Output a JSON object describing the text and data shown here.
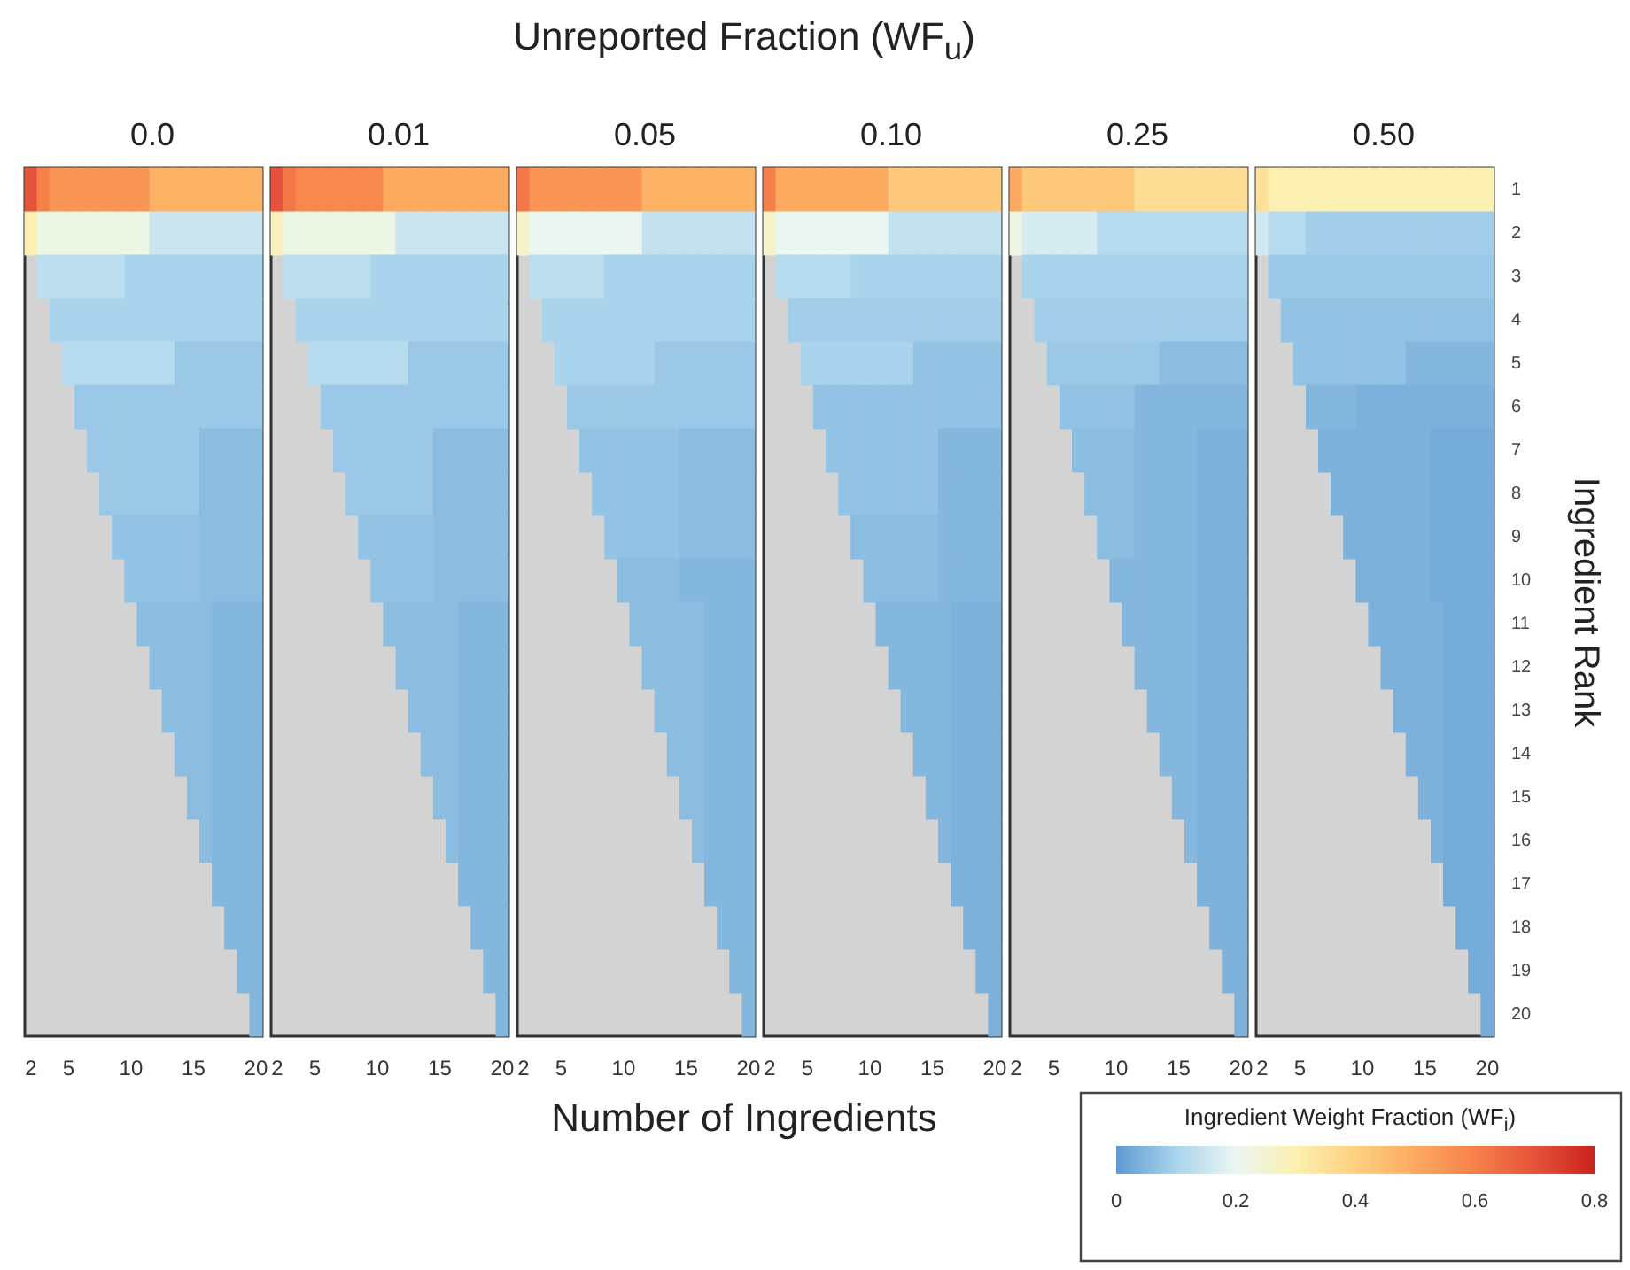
{
  "chart_data": {
    "type": "heatmap",
    "title": "Unreported Fraction (WF$_{u}$)",
    "annotations": [
      "0.0",
      "0.01",
      "0.05",
      "0.10",
      "0.25",
      "0.50"
    ],
    "xlabel": "Number of Ingredients",
    "ylabel": "Ingredient Rank",
    "clabel": "Ingredient Weight Fraction (WF$_{i}$)",
    "clim": [
      0,
      0.8
    ],
    "cticks": [
      0,
      0.2,
      0.4,
      0.6,
      0.8
    ],
    "categories": [
      "2",
      null,
      null,
      "5",
      null,
      null,
      null,
      null,
      "10",
      null,
      null,
      null,
      null,
      "15",
      null,
      null,
      null,
      null,
      "20",
      "2",
      null,
      null,
      "5",
      null,
      null,
      null,
      null,
      "10",
      null,
      null,
      null,
      null,
      "15",
      null,
      null,
      null,
      null,
      "20",
      "2",
      null,
      null,
      "5",
      null,
      null,
      null,
      null,
      "10",
      null,
      null,
      null,
      null,
      "15",
      null,
      null,
      null,
      null,
      "20",
      "2",
      null,
      null,
      "5",
      null,
      null,
      null,
      null,
      "10",
      null,
      null,
      null,
      null,
      "15",
      null,
      null,
      null,
      null,
      "20",
      "2",
      null,
      null,
      "5",
      null,
      null,
      null,
      null,
      "10",
      null,
      null,
      null,
      null,
      "15",
      null,
      null,
      null,
      null,
      "20",
      "2",
      null,
      null,
      "5",
      null,
      null,
      null,
      null,
      "10",
      null,
      null,
      null,
      null,
      "15",
      null,
      null,
      null,
      null,
      "20"
    ],
    "y_categories": [
      "1",
      "2",
      "3",
      "4",
      "5",
      "6",
      "7",
      "8",
      "9",
      "10",
      "11",
      "12",
      "13",
      "14",
      "15",
      "16",
      "17",
      "18",
      "19",
      "20"
    ],
    "cells": [
      [
        0.7,
        0.6,
        0.55,
        0.55,
        0.55,
        0.55,
        0.55,
        0.55,
        0.55,
        0.55,
        0.48,
        0.48,
        0.48,
        0.48,
        0.48,
        0.48,
        0.48,
        0.48,
        0.48,
        0.7,
        0.62,
        0.58,
        0.58,
        0.58,
        0.58,
        0.58,
        0.58,
        0.58,
        0.5,
        0.5,
        0.5,
        0.5,
        0.5,
        0.5,
        0.5,
        0.5,
        0.5,
        0.5,
        0.62,
        0.55,
        0.55,
        0.55,
        0.55,
        0.55,
        0.55,
        0.55,
        0.55,
        0.55,
        0.48,
        0.48,
        0.48,
        0.48,
        0.48,
        0.48,
        0.48,
        0.48,
        0.48,
        0.6,
        0.5,
        0.5,
        0.5,
        0.5,
        0.5,
        0.5,
        0.5,
        0.5,
        0.5,
        0.42,
        0.42,
        0.42,
        0.42,
        0.42,
        0.42,
        0.42,
        0.42,
        0.42,
        0.5,
        0.42,
        0.42,
        0.42,
        0.42,
        0.42,
        0.42,
        0.42,
        0.42,
        0.42,
        0.36,
        0.36,
        0.36,
        0.36,
        0.36,
        0.36,
        0.36,
        0.36,
        0.36,
        0.35,
        0.3,
        0.3,
        0.3,
        0.3,
        0.3,
        0.3,
        0.3,
        0.3,
        0.3,
        0.3,
        0.3,
        0.3,
        0.3,
        0.3,
        0.3,
        0.3,
        0.3,
        0.3
      ],
      [
        0.3,
        0.22,
        0.22,
        0.22,
        0.22,
        0.22,
        0.22,
        0.22,
        0.22,
        0.22,
        0.15,
        0.15,
        0.15,
        0.15,
        0.15,
        0.15,
        0.15,
        0.15,
        0.15,
        0.28,
        0.22,
        0.22,
        0.22,
        0.22,
        0.22,
        0.22,
        0.22,
        0.22,
        0.22,
        0.15,
        0.15,
        0.15,
        0.15,
        0.15,
        0.15,
        0.15,
        0.15,
        0.15,
        0.26,
        0.2,
        0.2,
        0.2,
        0.2,
        0.2,
        0.2,
        0.2,
        0.2,
        0.2,
        0.14,
        0.14,
        0.14,
        0.14,
        0.14,
        0.14,
        0.14,
        0.14,
        0.14,
        0.26,
        0.2,
        0.2,
        0.2,
        0.2,
        0.2,
        0.2,
        0.2,
        0.2,
        0.2,
        0.14,
        0.14,
        0.14,
        0.14,
        0.14,
        0.14,
        0.14,
        0.14,
        0.14,
        0.22,
        0.17,
        0.17,
        0.17,
        0.17,
        0.17,
        0.17,
        0.12,
        0.12,
        0.12,
        0.12,
        0.12,
        0.12,
        0.12,
        0.12,
        0.12,
        0.12,
        0.12,
        0.12,
        0.16,
        0.12,
        0.12,
        0.12,
        0.09,
        0.09,
        0.09,
        0.09,
        0.09,
        0.09,
        0.09,
        0.09,
        0.09,
        0.09,
        0.09,
        0.09,
        0.09,
        0.09,
        0.09
      ],
      [
        null,
        0.13,
        0.13,
        0.13,
        0.13,
        0.13,
        0.13,
        0.13,
        0.1,
        0.1,
        0.1,
        0.1,
        0.1,
        0.1,
        0.1,
        0.1,
        0.1,
        0.1,
        0.1,
        null,
        0.13,
        0.13,
        0.13,
        0.13,
        0.13,
        0.13,
        0.13,
        0.1,
        0.1,
        0.1,
        0.1,
        0.1,
        0.1,
        0.1,
        0.1,
        0.1,
        0.1,
        0.1,
        null,
        0.13,
        0.13,
        0.13,
        0.13,
        0.13,
        0.13,
        0.1,
        0.1,
        0.1,
        0.1,
        0.1,
        0.1,
        0.1,
        0.1,
        0.1,
        0.1,
        0.1,
        0.1,
        null,
        0.12,
        0.12,
        0.12,
        0.12,
        0.12,
        0.12,
        0.1,
        0.1,
        0.1,
        0.1,
        0.1,
        0.1,
        0.1,
        0.1,
        0.1,
        0.1,
        0.1,
        0.1,
        null,
        0.1,
        0.1,
        0.1,
        0.1,
        0.1,
        0.1,
        0.1,
        0.1,
        0.1,
        0.1,
        0.1,
        0.1,
        0.1,
        0.1,
        0.1,
        0.1,
        0.1,
        0.1,
        null,
        0.08,
        0.08,
        0.08,
        0.08,
        0.08,
        0.08,
        0.08,
        0.08,
        0.08,
        0.08,
        0.08,
        0.08,
        0.08,
        0.08,
        0.08,
        0.08,
        0.08,
        0.08
      ],
      [
        null,
        null,
        0.1,
        0.1,
        0.1,
        0.1,
        0.1,
        0.1,
        0.1,
        0.1,
        0.1,
        0.1,
        0.1,
        0.1,
        0.1,
        0.1,
        0.1,
        0.1,
        0.1,
        null,
        null,
        0.1,
        0.1,
        0.1,
        0.1,
        0.1,
        0.1,
        0.1,
        0.1,
        0.1,
        0.1,
        0.1,
        0.1,
        0.1,
        0.1,
        0.1,
        0.1,
        0.1,
        null,
        null,
        0.1,
        0.1,
        0.1,
        0.1,
        0.1,
        0.1,
        0.1,
        0.1,
        0.1,
        0.1,
        0.1,
        0.1,
        0.1,
        0.1,
        0.1,
        0.1,
        0.1,
        null,
        null,
        0.09,
        0.09,
        0.09,
        0.09,
        0.09,
        0.09,
        0.09,
        0.09,
        0.09,
        0.09,
        0.09,
        0.09,
        0.09,
        0.09,
        0.09,
        0.09,
        0.09,
        null,
        null,
        0.09,
        0.09,
        0.09,
        0.09,
        0.09,
        0.09,
        0.09,
        0.09,
        0.09,
        0.09,
        0.09,
        0.09,
        0.09,
        0.09,
        0.09,
        0.09,
        0.09,
        null,
        null,
        0.07,
        0.07,
        0.07,
        0.07,
        0.07,
        0.07,
        0.07,
        0.07,
        0.07,
        0.07,
        0.07,
        0.07,
        0.07,
        0.07,
        0.07,
        0.07,
        0.07
      ],
      [
        null,
        null,
        null,
        0.12,
        0.12,
        0.12,
        0.12,
        0.12,
        0.12,
        0.12,
        0.12,
        0.12,
        0.08,
        0.08,
        0.08,
        0.08,
        0.08,
        0.08,
        0.08,
        null,
        null,
        null,
        0.12,
        0.12,
        0.12,
        0.12,
        0.12,
        0.12,
        0.12,
        0.12,
        0.08,
        0.08,
        0.08,
        0.08,
        0.08,
        0.08,
        0.08,
        0.08,
        null,
        null,
        null,
        0.1,
        0.1,
        0.1,
        0.1,
        0.1,
        0.1,
        0.1,
        0.1,
        0.08,
        0.08,
        0.08,
        0.08,
        0.08,
        0.08,
        0.08,
        0.08,
        null,
        null,
        null,
        0.1,
        0.1,
        0.1,
        0.1,
        0.1,
        0.1,
        0.1,
        0.1,
        0.1,
        0.07,
        0.07,
        0.07,
        0.07,
        0.07,
        0.07,
        0.07,
        null,
        null,
        null,
        0.08,
        0.08,
        0.08,
        0.08,
        0.08,
        0.08,
        0.08,
        0.08,
        0.08,
        0.06,
        0.06,
        0.06,
        0.06,
        0.06,
        0.06,
        0.06,
        null,
        null,
        null,
        0.07,
        0.07,
        0.07,
        0.07,
        0.07,
        0.07,
        0.07,
        0.07,
        0.07,
        0.05,
        0.05,
        0.05,
        0.05,
        0.05,
        0.05,
        0.05
      ],
      [
        null,
        null,
        null,
        null,
        0.08,
        0.08,
        0.08,
        0.08,
        0.08,
        0.08,
        0.08,
        0.08,
        0.08,
        0.08,
        0.08,
        0.08,
        0.08,
        0.08,
        0.08,
        null,
        null,
        null,
        null,
        0.08,
        0.08,
        0.08,
        0.08,
        0.08,
        0.08,
        0.08,
        0.08,
        0.08,
        0.08,
        0.08,
        0.08,
        0.08,
        0.08,
        0.08,
        null,
        null,
        null,
        null,
        0.08,
        0.08,
        0.08,
        0.08,
        0.08,
        0.08,
        0.08,
        0.08,
        0.08,
        0.08,
        0.08,
        0.08,
        0.08,
        0.08,
        0.08,
        null,
        null,
        null,
        null,
        0.07,
        0.07,
        0.07,
        0.07,
        0.07,
        0.07,
        0.07,
        0.07,
        0.07,
        0.07,
        0.07,
        0.07,
        0.07,
        0.07,
        0.07,
        null,
        null,
        null,
        null,
        0.07,
        0.07,
        0.07,
        0.07,
        0.07,
        0.07,
        0.05,
        0.05,
        0.05,
        0.05,
        0.05,
        0.05,
        0.05,
        0.05,
        0.05,
        null,
        null,
        null,
        null,
        0.05,
        0.05,
        0.05,
        0.05,
        0.04,
        0.04,
        0.04,
        0.04,
        0.04,
        0.04,
        0.04,
        0.04,
        0.04,
        0.04,
        0.04
      ],
      [
        null,
        null,
        null,
        null,
        null,
        0.08,
        0.08,
        0.08,
        0.08,
        0.08,
        0.08,
        0.08,
        0.08,
        0.08,
        0.06,
        0.06,
        0.06,
        0.06,
        0.06,
        null,
        null,
        null,
        null,
        null,
        0.08,
        0.08,
        0.08,
        0.08,
        0.08,
        0.08,
        0.08,
        0.08,
        0.06,
        0.06,
        0.06,
        0.06,
        0.06,
        0.06,
        null,
        null,
        null,
        null,
        null,
        0.07,
        0.07,
        0.07,
        0.07,
        0.07,
        0.07,
        0.07,
        0.07,
        0.06,
        0.06,
        0.06,
        0.06,
        0.06,
        0.06,
        null,
        null,
        null,
        null,
        null,
        0.07,
        0.07,
        0.07,
        0.07,
        0.07,
        0.07,
        0.07,
        0.07,
        0.07,
        0.05,
        0.05,
        0.05,
        0.05,
        0.05,
        null,
        null,
        null,
        null,
        null,
        0.06,
        0.06,
        0.06,
        0.06,
        0.06,
        0.05,
        0.05,
        0.05,
        0.05,
        0.05,
        0.04,
        0.04,
        0.04,
        0.04,
        null,
        null,
        null,
        null,
        null,
        0.04,
        0.04,
        0.04,
        0.04,
        0.04,
        0.04,
        0.04,
        0.04,
        0.04,
        0.03,
        0.03,
        0.03,
        0.03,
        0.03
      ],
      [
        null,
        null,
        null,
        null,
        null,
        null,
        0.08,
        0.08,
        0.08,
        0.08,
        0.08,
        0.08,
        0.08,
        0.08,
        0.06,
        0.06,
        0.06,
        0.06,
        0.06,
        null,
        null,
        null,
        null,
        null,
        null,
        0.08,
        0.08,
        0.08,
        0.08,
        0.08,
        0.08,
        0.08,
        0.06,
        0.06,
        0.06,
        0.06,
        0.06,
        0.06,
        null,
        null,
        null,
        null,
        null,
        null,
        0.07,
        0.07,
        0.07,
        0.07,
        0.07,
        0.07,
        0.07,
        0.06,
        0.06,
        0.06,
        0.06,
        0.06,
        0.06,
        null,
        null,
        null,
        null,
        null,
        null,
        0.07,
        0.07,
        0.07,
        0.07,
        0.07,
        0.07,
        0.07,
        0.07,
        0.05,
        0.05,
        0.05,
        0.05,
        0.05,
        null,
        null,
        null,
        null,
        null,
        null,
        0.06,
        0.06,
        0.06,
        0.06,
        0.05,
        0.05,
        0.05,
        0.05,
        0.05,
        0.04,
        0.04,
        0.04,
        0.04,
        null,
        null,
        null,
        null,
        null,
        null,
        0.04,
        0.04,
        0.04,
        0.04,
        0.04,
        0.04,
        0.04,
        0.04,
        0.03,
        0.03,
        0.03,
        0.03,
        0.03
      ],
      [
        null,
        null,
        null,
        null,
        null,
        null,
        null,
        0.07,
        0.07,
        0.07,
        0.07,
        0.07,
        0.07,
        0.07,
        0.06,
        0.06,
        0.06,
        0.06,
        0.06,
        null,
        null,
        null,
        null,
        null,
        null,
        null,
        0.07,
        0.07,
        0.07,
        0.07,
        0.07,
        0.07,
        0.06,
        0.06,
        0.06,
        0.06,
        0.06,
        0.06,
        null,
        null,
        null,
        null,
        null,
        null,
        null,
        0.07,
        0.07,
        0.07,
        0.07,
        0.07,
        0.07,
        0.06,
        0.06,
        0.06,
        0.06,
        0.06,
        0.06,
        null,
        null,
        null,
        null,
        null,
        null,
        null,
        0.06,
        0.06,
        0.06,
        0.06,
        0.06,
        0.06,
        0.06,
        0.05,
        0.05,
        0.05,
        0.05,
        0.05,
        null,
        null,
        null,
        null,
        null,
        null,
        null,
        0.06,
        0.06,
        0.06,
        0.05,
        0.05,
        0.05,
        0.05,
        0.05,
        0.04,
        0.04,
        0.04,
        0.04,
        null,
        null,
        null,
        null,
        null,
        null,
        null,
        0.04,
        0.04,
        0.04,
        0.04,
        0.04,
        0.04,
        0.04,
        0.03,
        0.03,
        0.03,
        0.03,
        0.03
      ],
      [
        null,
        null,
        null,
        null,
        null,
        null,
        null,
        null,
        0.07,
        0.07,
        0.07,
        0.07,
        0.07,
        0.07,
        0.06,
        0.06,
        0.06,
        0.06,
        0.06,
        null,
        null,
        null,
        null,
        null,
        null,
        null,
        null,
        0.07,
        0.07,
        0.07,
        0.07,
        0.07,
        0.06,
        0.06,
        0.06,
        0.06,
        0.06,
        0.06,
        null,
        null,
        null,
        null,
        null,
        null,
        null,
        null,
        0.06,
        0.06,
        0.06,
        0.06,
        0.06,
        0.05,
        0.05,
        0.05,
        0.05,
        0.05,
        0.05,
        null,
        null,
        null,
        null,
        null,
        null,
        null,
        null,
        0.06,
        0.06,
        0.06,
        0.06,
        0.06,
        0.06,
        0.05,
        0.05,
        0.05,
        0.05,
        0.05,
        null,
        null,
        null,
        null,
        null,
        null,
        null,
        null,
        0.05,
        0.05,
        0.05,
        0.05,
        0.05,
        0.05,
        0.05,
        0.04,
        0.04,
        0.04,
        0.04,
        null,
        null,
        null,
        null,
        null,
        null,
        null,
        null,
        0.04,
        0.04,
        0.04,
        0.04,
        0.04,
        0.04,
        0.03,
        0.03,
        0.03,
        0.03,
        0.03
      ],
      [
        null,
        null,
        null,
        null,
        null,
        null,
        null,
        null,
        null,
        0.06,
        0.06,
        0.06,
        0.06,
        0.06,
        0.06,
        0.05,
        0.05,
        0.05,
        0.05,
        null,
        null,
        null,
        null,
        null,
        null,
        null,
        null,
        null,
        0.06,
        0.06,
        0.06,
        0.06,
        0.06,
        0.06,
        0.05,
        0.05,
        0.05,
        0.05,
        null,
        null,
        null,
        null,
        null,
        null,
        null,
        null,
        null,
        0.06,
        0.06,
        0.06,
        0.06,
        0.06,
        0.06,
        0.05,
        0.05,
        0.05,
        0.05,
        null,
        null,
        null,
        null,
        null,
        null,
        null,
        null,
        null,
        0.05,
        0.05,
        0.05,
        0.05,
        0.05,
        0.05,
        0.04,
        0.04,
        0.04,
        0.04,
        null,
        null,
        null,
        null,
        null,
        null,
        null,
        null,
        null,
        0.05,
        0.05,
        0.05,
        0.05,
        0.05,
        0.05,
        0.04,
        0.04,
        0.04,
        0.04,
        null,
        null,
        null,
        null,
        null,
        null,
        null,
        null,
        null,
        0.04,
        0.04,
        0.04,
        0.04,
        0.04,
        0.04,
        0.03,
        0.03,
        0.03,
        0.03
      ],
      [
        null,
        null,
        null,
        null,
        null,
        null,
        null,
        null,
        null,
        null,
        0.06,
        0.06,
        0.06,
        0.06,
        0.06,
        0.05,
        0.05,
        0.05,
        0.05,
        null,
        null,
        null,
        null,
        null,
        null,
        null,
        null,
        null,
        null,
        0.06,
        0.06,
        0.06,
        0.06,
        0.06,
        0.05,
        0.05,
        0.05,
        0.05,
        null,
        null,
        null,
        null,
        null,
        null,
        null,
        null,
        null,
        null,
        0.06,
        0.06,
        0.06,
        0.06,
        0.06,
        0.05,
        0.05,
        0.05,
        0.05,
        null,
        null,
        null,
        null,
        null,
        null,
        null,
        null,
        null,
        null,
        0.05,
        0.05,
        0.05,
        0.05,
        0.05,
        0.04,
        0.04,
        0.04,
        0.04,
        null,
        null,
        null,
        null,
        null,
        null,
        null,
        null,
        null,
        null,
        0.05,
        0.05,
        0.05,
        0.05,
        0.05,
        0.04,
        0.04,
        0.04,
        0.04,
        null,
        null,
        null,
        null,
        null,
        null,
        null,
        null,
        null,
        null,
        0.04,
        0.04,
        0.04,
        0.04,
        0.04,
        0.03,
        0.03,
        0.03,
        0.03
      ],
      [
        null,
        null,
        null,
        null,
        null,
        null,
        null,
        null,
        null,
        null,
        null,
        0.06,
        0.06,
        0.06,
        0.06,
        0.05,
        0.05,
        0.05,
        0.05,
        null,
        null,
        null,
        null,
        null,
        null,
        null,
        null,
        null,
        null,
        null,
        0.06,
        0.06,
        0.06,
        0.06,
        0.05,
        0.05,
        0.05,
        0.05,
        null,
        null,
        null,
        null,
        null,
        null,
        null,
        null,
        null,
        null,
        null,
        0.06,
        0.06,
        0.06,
        0.06,
        0.05,
        0.05,
        0.05,
        0.05,
        null,
        null,
        null,
        null,
        null,
        null,
        null,
        null,
        null,
        null,
        null,
        0.05,
        0.05,
        0.05,
        0.05,
        0.04,
        0.04,
        0.04,
        0.04,
        null,
        null,
        null,
        null,
        null,
        null,
        null,
        null,
        null,
        null,
        null,
        0.05,
        0.05,
        0.05,
        0.05,
        0.04,
        0.04,
        0.04,
        0.04,
        null,
        null,
        null,
        null,
        null,
        null,
        null,
        null,
        null,
        null,
        null,
        0.04,
        0.04,
        0.04,
        0.04,
        0.03,
        0.03,
        0.03,
        0.03
      ],
      [
        null,
        null,
        null,
        null,
        null,
        null,
        null,
        null,
        null,
        null,
        null,
        null,
        0.06,
        0.06,
        0.06,
        0.05,
        0.05,
        0.05,
        0.05,
        null,
        null,
        null,
        null,
        null,
        null,
        null,
        null,
        null,
        null,
        null,
        null,
        0.06,
        0.06,
        0.06,
        0.05,
        0.05,
        0.05,
        0.05,
        null,
        null,
        null,
        null,
        null,
        null,
        null,
        null,
        null,
        null,
        null,
        null,
        0.06,
        0.06,
        0.06,
        0.05,
        0.05,
        0.05,
        0.05,
        null,
        null,
        null,
        null,
        null,
        null,
        null,
        null,
        null,
        null,
        null,
        null,
        0.05,
        0.05,
        0.05,
        0.04,
        0.04,
        0.04,
        0.04,
        null,
        null,
        null,
        null,
        null,
        null,
        null,
        null,
        null,
        null,
        null,
        null,
        0.05,
        0.05,
        0.05,
        0.04,
        0.04,
        0.04,
        0.04,
        null,
        null,
        null,
        null,
        null,
        null,
        null,
        null,
        null,
        null,
        null,
        null,
        0.04,
        0.04,
        0.04,
        0.03,
        0.03,
        0.03,
        0.03
      ],
      [
        null,
        null,
        null,
        null,
        null,
        null,
        null,
        null,
        null,
        null,
        null,
        null,
        null,
        0.06,
        0.06,
        0.05,
        0.05,
        0.05,
        0.05,
        null,
        null,
        null,
        null,
        null,
        null,
        null,
        null,
        null,
        null,
        null,
        null,
        null,
        0.06,
        0.06,
        0.05,
        0.05,
        0.05,
        0.05,
        null,
        null,
        null,
        null,
        null,
        null,
        null,
        null,
        null,
        null,
        null,
        null,
        null,
        0.06,
        0.06,
        0.05,
        0.05,
        0.05,
        0.05,
        null,
        null,
        null,
        null,
        null,
        null,
        null,
        null,
        null,
        null,
        null,
        null,
        null,
        0.05,
        0.05,
        0.04,
        0.04,
        0.04,
        0.04,
        null,
        null,
        null,
        null,
        null,
        null,
        null,
        null,
        null,
        null,
        null,
        null,
        null,
        0.05,
        0.05,
        0.04,
        0.04,
        0.04,
        0.04,
        null,
        null,
        null,
        null,
        null,
        null,
        null,
        null,
        null,
        null,
        null,
        null,
        null,
        0.04,
        0.04,
        0.03,
        0.03,
        0.03,
        0.03
      ],
      [
        null,
        null,
        null,
        null,
        null,
        null,
        null,
        null,
        null,
        null,
        null,
        null,
        null,
        null,
        0.06,
        0.05,
        0.05,
        0.05,
        0.05,
        null,
        null,
        null,
        null,
        null,
        null,
        null,
        null,
        null,
        null,
        null,
        null,
        null,
        null,
        0.06,
        0.05,
        0.05,
        0.05,
        0.05,
        null,
        null,
        null,
        null,
        null,
        null,
        null,
        null,
        null,
        null,
        null,
        null,
        null,
        null,
        0.06,
        0.05,
        0.05,
        0.05,
        0.05,
        null,
        null,
        null,
        null,
        null,
        null,
        null,
        null,
        null,
        null,
        null,
        null,
        null,
        null,
        0.05,
        0.04,
        0.04,
        0.04,
        0.04,
        null,
        null,
        null,
        null,
        null,
        null,
        null,
        null,
        null,
        null,
        null,
        null,
        null,
        null,
        0.05,
        0.04,
        0.04,
        0.04,
        0.04,
        null,
        null,
        null,
        null,
        null,
        null,
        null,
        null,
        null,
        null,
        null,
        null,
        null,
        null,
        0.04,
        0.03,
        0.03,
        0.03,
        0.03
      ],
      [
        null,
        null,
        null,
        null,
        null,
        null,
        null,
        null,
        null,
        null,
        null,
        null,
        null,
        null,
        null,
        0.05,
        0.05,
        0.05,
        0.05,
        null,
        null,
        null,
        null,
        null,
        null,
        null,
        null,
        null,
        null,
        null,
        null,
        null,
        null,
        null,
        0.05,
        0.05,
        0.05,
        0.05,
        null,
        null,
        null,
        null,
        null,
        null,
        null,
        null,
        null,
        null,
        null,
        null,
        null,
        null,
        null,
        0.05,
        0.05,
        0.05,
        0.05,
        null,
        null,
        null,
        null,
        null,
        null,
        null,
        null,
        null,
        null,
        null,
        null,
        null,
        null,
        null,
        0.04,
        0.04,
        0.04,
        0.04,
        null,
        null,
        null,
        null,
        null,
        null,
        null,
        null,
        null,
        null,
        null,
        null,
        null,
        null,
        null,
        0.04,
        0.04,
        0.04,
        0.04,
        null,
        null,
        null,
        null,
        null,
        null,
        null,
        null,
        null,
        null,
        null,
        null,
        null,
        null,
        null,
        0.03,
        0.03,
        0.03,
        0.03
      ],
      [
        null,
        null,
        null,
        null,
        null,
        null,
        null,
        null,
        null,
        null,
        null,
        null,
        null,
        null,
        null,
        null,
        0.05,
        0.05,
        0.05,
        null,
        null,
        null,
        null,
        null,
        null,
        null,
        null,
        null,
        null,
        null,
        null,
        null,
        null,
        null,
        null,
        0.05,
        0.05,
        0.05,
        null,
        null,
        null,
        null,
        null,
        null,
        null,
        null,
        null,
        null,
        null,
        null,
        null,
        null,
        null,
        null,
        0.05,
        0.05,
        0.05,
        null,
        null,
        null,
        null,
        null,
        null,
        null,
        null,
        null,
        null,
        null,
        null,
        null,
        null,
        null,
        null,
        0.04,
        0.04,
        0.04,
        null,
        null,
        null,
        null,
        null,
        null,
        null,
        null,
        null,
        null,
        null,
        null,
        null,
        null,
        null,
        null,
        0.04,
        0.04,
        0.04,
        null,
        null,
        null,
        null,
        null,
        null,
        null,
        null,
        null,
        null,
        null,
        null,
        null,
        null,
        null,
        null,
        0.03,
        0.03,
        0.03
      ],
      [
        null,
        null,
        null,
        null,
        null,
        null,
        null,
        null,
        null,
        null,
        null,
        null,
        null,
        null,
        null,
        null,
        null,
        0.05,
        0.05,
        null,
        null,
        null,
        null,
        null,
        null,
        null,
        null,
        null,
        null,
        null,
        null,
        null,
        null,
        null,
        null,
        null,
        0.05,
        0.05,
        null,
        null,
        null,
        null,
        null,
        null,
        null,
        null,
        null,
        null,
        null,
        null,
        null,
        null,
        null,
        null,
        null,
        0.05,
        0.05,
        null,
        null,
        null,
        null,
        null,
        null,
        null,
        null,
        null,
        null,
        null,
        null,
        null,
        null,
        null,
        null,
        null,
        0.04,
        0.04,
        null,
        null,
        null,
        null,
        null,
        null,
        null,
        null,
        null,
        null,
        null,
        null,
        null,
        null,
        null,
        null,
        null,
        0.04,
        0.04,
        null,
        null,
        null,
        null,
        null,
        null,
        null,
        null,
        null,
        null,
        null,
        null,
        null,
        null,
        null,
        null,
        null,
        0.03,
        0.03
      ],
      [
        null,
        null,
        null,
        null,
        null,
        null,
        null,
        null,
        null,
        null,
        null,
        null,
        null,
        null,
        null,
        null,
        null,
        null,
        0.05,
        null,
        null,
        null,
        null,
        null,
        null,
        null,
        null,
        null,
        null,
        null,
        null,
        null,
        null,
        null,
        null,
        null,
        null,
        0.05,
        null,
        null,
        null,
        null,
        null,
        null,
        null,
        null,
        null,
        null,
        null,
        null,
        null,
        null,
        null,
        null,
        null,
        null,
        0.05,
        null,
        null,
        null,
        null,
        null,
        null,
        null,
        null,
        null,
        null,
        null,
        null,
        null,
        null,
        null,
        null,
        null,
        null,
        0.04,
        null,
        null,
        null,
        null,
        null,
        null,
        null,
        null,
        null,
        null,
        null,
        null,
        null,
        null,
        null,
        null,
        null,
        null,
        0.04,
        null,
        null,
        null,
        null,
        null,
        null,
        null,
        null,
        null,
        null,
        null,
        null,
        null,
        null,
        null,
        null,
        null,
        null,
        0.03
      ]
    ]
  }
}
